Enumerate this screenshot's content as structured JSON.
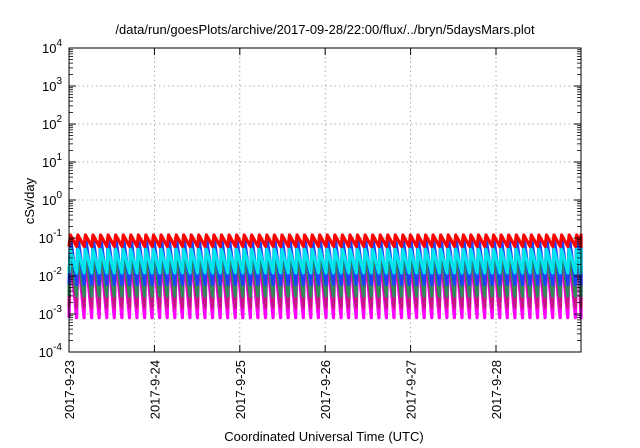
{
  "chart_data": {
    "type": "line",
    "title": "/data/run/goesPlots/archive/2017-09-28/22:00/flux/../bryn/5daysMars.plot",
    "xlabel": "Coordinated Universal Time (UTC)",
    "ylabel": "cSv/day",
    "y_scale": "log",
    "ylim": [
      0.0001,
      10000
    ],
    "xlim": [
      "2017-09-23",
      "2017-09-29"
    ],
    "y_ticks": [
      {
        "base": "10",
        "exp": "-4"
      },
      {
        "base": "10",
        "exp": "-3"
      },
      {
        "base": "10",
        "exp": "-2"
      },
      {
        "base": "10",
        "exp": "-1"
      },
      {
        "base": "10",
        "exp": "0"
      },
      {
        "base": "10",
        "exp": "1"
      },
      {
        "base": "10",
        "exp": "2"
      },
      {
        "base": "10",
        "exp": "3"
      },
      {
        "base": "10",
        "exp": "4"
      }
    ],
    "x_ticks": [
      "2017-9-23",
      "2017-9-24",
      "2017-9-25",
      "2017-9-26",
      "2017-9-27",
      "2017-9-28"
    ],
    "grid": true,
    "series_pattern": {
      "cycles_per_day": 11.3,
      "description": "sawtooth dose-rate oscillations, values in cSv/day"
    },
    "series": [
      {
        "color": "#ff00ff",
        "peak": 0.04,
        "trough": 0.0008
      },
      {
        "color": "#c71585",
        "peak": 0.06,
        "trough": 0.0015
      },
      {
        "color": "#2e8b57",
        "peak": 0.05,
        "trough": 0.003
      },
      {
        "color": "#1e40ff",
        "peak": 0.11,
        "trough": 0.006
      },
      {
        "color": "#00e5ee",
        "peak": 0.05,
        "trough": 0.012
      },
      {
        "color": "#ff0000",
        "peak": 0.12,
        "trough": 0.06
      }
    ]
  }
}
